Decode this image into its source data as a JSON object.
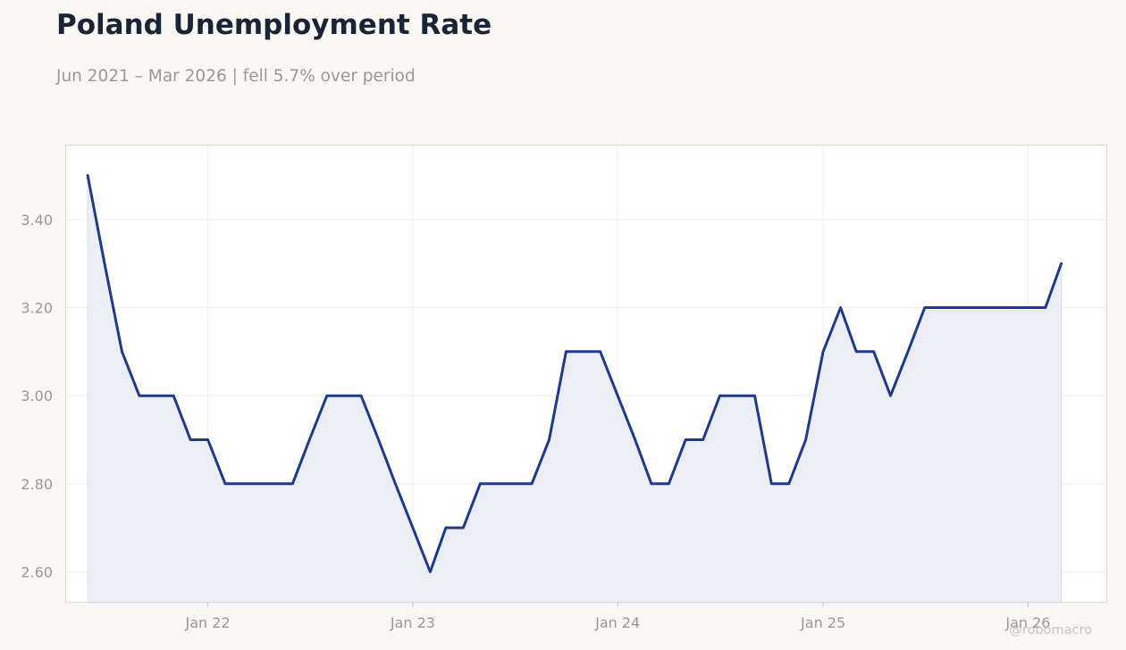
{
  "header": {
    "title": "Poland Unemployment Rate",
    "subtitle": "Jun 2021 – Mar 2026 | fell 5.7% over period"
  },
  "watermark": "@robomacro",
  "colors": {
    "line": "#1f3a8a",
    "fill": "#edeef5",
    "grid": "#eeeeee",
    "background": "#f9f8f5",
    "plot_background": "#ffffff"
  },
  "chart_data": {
    "type": "area",
    "title": "Poland Unemployment Rate",
    "subtitle": "Jun 2021 – Mar 2026 | fell 5.7% over period",
    "xlabel": "",
    "ylabel": "",
    "ylim": [
      2.53,
      3.57
    ],
    "xlim": [
      "2021-04-22",
      "2026-05-22"
    ],
    "grid": true,
    "legend": "none",
    "y_ticks": [
      {
        "value": 2.6,
        "label": "2.60"
      },
      {
        "value": 2.8,
        "label": "2.80"
      },
      {
        "value": 3.0,
        "label": "3.00"
      },
      {
        "value": 3.2,
        "label": "3.20"
      },
      {
        "value": 3.4,
        "label": "3.40"
      }
    ],
    "x_ticks": [
      {
        "value": "2022-01-01",
        "label": "Jan 22"
      },
      {
        "value": "2023-01-01",
        "label": "Jan 23"
      },
      {
        "value": "2024-01-01",
        "label": "Jan 24"
      },
      {
        "value": "2025-01-01",
        "label": "Jan 25"
      },
      {
        "value": "2026-01-01",
        "label": "Jan 26"
      }
    ],
    "series": [
      {
        "x": [
          "2021-06",
          "2021-07",
          "2021-08",
          "2021-09",
          "2021-10",
          "2021-11",
          "2021-12",
          "2022-01",
          "2022-02",
          "2022-03",
          "2022-04",
          "2022-05",
          "2022-06",
          "2022-07",
          "2022-08",
          "2022-09",
          "2022-10",
          "2022-11",
          "2022-12",
          "2023-01",
          "2023-02",
          "2023-03",
          "2023-04",
          "2023-05",
          "2023-06",
          "2023-07",
          "2023-08",
          "2023-09",
          "2023-10",
          "2023-11",
          "2023-12",
          "2024-01",
          "2024-02",
          "2024-03",
          "2024-04",
          "2024-05",
          "2024-06",
          "2024-07",
          "2024-08",
          "2024-09",
          "2024-10",
          "2024-11",
          "2024-12",
          "2025-01",
          "2025-02",
          "2025-03",
          "2025-04",
          "2025-05",
          "2025-06",
          "2025-07",
          "2025-08",
          "2025-09",
          "2025-10",
          "2025-11",
          "2025-12",
          "2026-01",
          "2026-02",
          "2026-03"
        ],
        "values": [
          3.5,
          3.3,
          3.1,
          3.0,
          3.0,
          3.0,
          2.9,
          2.9,
          2.8,
          2.8,
          2.8,
          2.8,
          2.8,
          2.9,
          3.0,
          3.0,
          3.0,
          2.9,
          2.8,
          2.7,
          2.6,
          2.7,
          2.7,
          2.8,
          2.8,
          2.8,
          2.8,
          2.9,
          3.1,
          3.1,
          3.1,
          3.0,
          2.9,
          2.8,
          2.8,
          2.9,
          2.9,
          3.0,
          3.0,
          3.0,
          2.8,
          2.8,
          2.9,
          3.1,
          3.2,
          3.1,
          3.1,
          3.0,
          3.1,
          3.2,
          3.2,
          3.2,
          3.2,
          3.2,
          3.2,
          3.2,
          3.2,
          3.3
        ]
      }
    ]
  }
}
